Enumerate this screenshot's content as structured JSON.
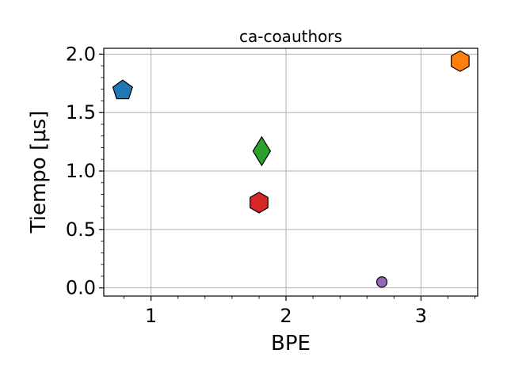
{
  "chart_data": {
    "type": "scatter",
    "title": "ca-coauthors",
    "xlabel": "BPE",
    "ylabel": "Tiempo [μs]",
    "xlim": [
      0.65,
      3.42
    ],
    "ylim": [
      -0.07,
      2.05
    ],
    "xticks": [
      1,
      2,
      3
    ],
    "yticks": [
      0.0,
      0.5,
      1.0,
      1.5,
      2.0
    ],
    "xtick_labels": [
      "1",
      "2",
      "3"
    ],
    "ytick_labels": [
      "0.0",
      "0.5",
      "1.0",
      "1.5",
      "2.0"
    ],
    "grid": true,
    "points": [
      {
        "x": 0.79,
        "y": 1.69,
        "marker": "pentagon",
        "color": "#1f77b4"
      },
      {
        "x": 1.82,
        "y": 1.17,
        "marker": "diamond",
        "color": "#2ca02c"
      },
      {
        "x": 1.8,
        "y": 0.73,
        "marker": "hexagon",
        "color": "#d62728"
      },
      {
        "x": 2.71,
        "y": 0.05,
        "marker": "circle",
        "color": "#9467bd"
      },
      {
        "x": 3.29,
        "y": 1.94,
        "marker": "hexagon",
        "color": "#ff7f0e"
      }
    ]
  }
}
